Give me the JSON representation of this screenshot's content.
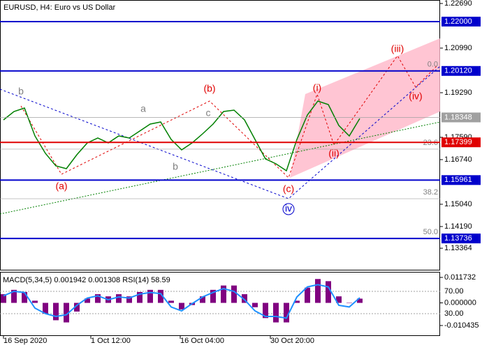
{
  "chart_data": {
    "type": "line",
    "title": "EURUSD, H4:  Euro vs US Dollar",
    "x_labels": [
      "16 Sep 2020",
      "1 Oct 12:00",
      "16 Oct 04:00",
      "30 Oct 20:00"
    ],
    "series": [
      {
        "name": "EURUSD",
        "color": "#008000",
        "values": [
          1.18254,
          1.18573,
          1.18706,
          1.17644,
          1.1698,
          1.16501,
          1.16395,
          1.16926,
          1.17378,
          1.17564,
          1.17378,
          1.17644,
          1.17564,
          1.17829,
          1.18095,
          1.18175,
          1.17511,
          1.17112,
          1.17378,
          1.17723,
          1.18095,
          1.18573,
          1.18626,
          1.18254,
          1.17511,
          1.16767,
          1.16581,
          1.16315,
          1.17511,
          1.1844,
          1.18972,
          1.18839,
          1.18042,
          1.17644,
          1.18308
        ]
      }
    ],
    "ylim": [
      1.12517,
      1.22823
    ],
    "yticks": [
      {
        "value": 1.2269,
        "label": "1.22690"
      },
      {
        "value": 1.2099,
        "label": "1.20990"
      },
      {
        "value": 1.1929,
        "label": "1.19290"
      },
      {
        "value": 1.1759,
        "label": "1.17590"
      },
      {
        "value": 1.1674,
        "label": "1.16740"
      },
      {
        "value": 1.1504,
        "label": "1.15040"
      },
      {
        "value": 1.1419,
        "label": "1.14190"
      },
      {
        "value": 1.13364,
        "label": "1.13364"
      }
    ],
    "levels": [
      {
        "value": 1.22,
        "label": "1.22000",
        "color": "#0000cc"
      },
      {
        "value": 1.2012,
        "label": "1.20120",
        "color": "#0000cc"
      },
      {
        "value": 1.18348,
        "label": "1.18348",
        "color": "#a0a0a0"
      },
      {
        "value": 1.17399,
        "label": "1.17399",
        "color": "#e00000"
      },
      {
        "value": 1.15961,
        "label": "1.15961",
        "color": "#0000cc"
      },
      {
        "value": 1.13736,
        "label": "1.13736",
        "color": "#0000cc"
      }
    ],
    "fib_levels": [
      {
        "value": 1.2012,
        "label": "0.0"
      },
      {
        "value": 1.1714,
        "label": "23.6"
      },
      {
        "value": 1.1525,
        "label": "38.2"
      },
      {
        "value": 1.1374,
        "label": "50.0"
      }
    ],
    "wave_labels": [
      {
        "text": "b",
        "color": "#808080"
      },
      {
        "text": "(a)",
        "color": "#e00000"
      },
      {
        "text": "a",
        "color": "#808080"
      },
      {
        "text": "b",
        "color": "#808080"
      },
      {
        "text": "(b)",
        "color": "#e00000"
      },
      {
        "text": "c",
        "color": "#808080"
      },
      {
        "text": "(c)",
        "color": "#e00000"
      },
      {
        "text": "iv",
        "color": "#0000cc"
      },
      {
        "text": "(i)",
        "color": "#e00000"
      },
      {
        "text": "(ii)",
        "color": "#e00000"
      },
      {
        "text": "(iii)",
        "color": "#e00000"
      },
      {
        "text": "(iv)",
        "color": "#e00000"
      }
    ],
    "indicator": {
      "title": "MACD(5,34,5) 0.001942 0.001308 RSI(14) 58.59",
      "macd": {
        "name": "MACD",
        "color": "#800080",
        "values": [
          0.004,
          0.006,
          0.005,
          0.001,
          -0.005,
          -0.008,
          -0.009,
          -0.004,
          0.002,
          0.004,
          0.003,
          0.004,
          0.003,
          0.005,
          0.006,
          0.006,
          0.001,
          -0.003,
          -0.001,
          0.003,
          0.006,
          0.008,
          0.008,
          0.004,
          -0.002,
          -0.007,
          -0.009,
          -0.009,
          0.001,
          0.007,
          0.011,
          0.01,
          0.003,
          0.0,
          0.001942
        ]
      },
      "ylim": [
        -0.01525,
        0.0143
      ],
      "yticks": [
        {
          "value": 0.011732,
          "label": "0.011732"
        },
        {
          "value": 0,
          "label": "0.000000"
        },
        {
          "value": -0.010435,
          "label": "-0.010435"
        }
      ],
      "rsi": {
        "name": "RSI",
        "color": "#1e90ff",
        "values": [
          62,
          70,
          68,
          40,
          30,
          25,
          28,
          45,
          58,
          62,
          55,
          60,
          58,
          65,
          68,
          66,
          42,
          35,
          48,
          60,
          68,
          75,
          70,
          55,
          35,
          25,
          25,
          22,
          60,
          78,
          82,
          78,
          45,
          42,
          58.59
        ]
      },
      "rsi_ylim": [
        -10,
        105
      ],
      "rsi_yticks": [
        {
          "value": 70,
          "label": "70.00"
        },
        {
          "value": 30,
          "label": "30.00"
        }
      ]
    }
  }
}
